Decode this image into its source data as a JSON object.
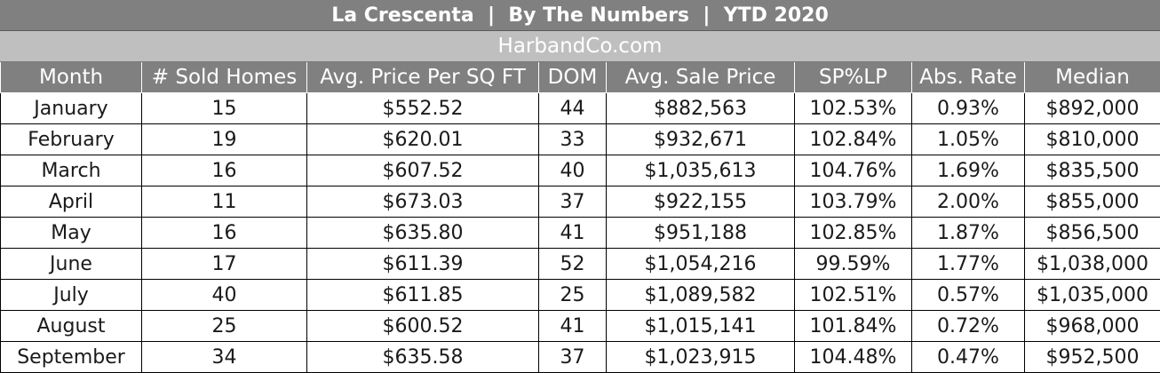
{
  "header": {
    "title": "La Crescenta  |  By The Numbers  |  YTD 2020",
    "site": "HarbandCo.com"
  },
  "chart_data": {
    "type": "table",
    "title": "La Crescenta  |  By The Numbers  |  YTD 2020",
    "columns": [
      "Month",
      "# Sold Homes",
      "Avg. Price Per SQ FT",
      "DOM",
      "Avg. Sale Price",
      "SP%LP",
      "Abs. Rate",
      "Median"
    ],
    "rows": [
      [
        "January",
        "15",
        "$552.52",
        "44",
        "$882,563",
        "102.53%",
        "0.93%",
        "$892,000"
      ],
      [
        "February",
        "19",
        "$620.01",
        "33",
        "$932,671",
        "102.84%",
        "1.05%",
        "$810,000"
      ],
      [
        "March",
        "16",
        "$607.52",
        "40",
        "$1,035,613",
        "104.76%",
        "1.69%",
        "$835,500"
      ],
      [
        "April",
        "11",
        "$673.03",
        "37",
        "$922,155",
        "103.79%",
        "2.00%",
        "$855,000"
      ],
      [
        "May",
        "16",
        "$635.80",
        "41",
        "$951,188",
        "102.85%",
        "1.87%",
        "$856,500"
      ],
      [
        "June",
        "17",
        "$611.39",
        "52",
        "$1,054,216",
        "99.59%",
        "1.77%",
        "$1,038,000"
      ],
      [
        "July",
        "40",
        "$611.85",
        "25",
        "$1,089,582",
        "102.51%",
        "0.57%",
        "$1,035,000"
      ],
      [
        "August",
        "25",
        "$600.52",
        "41",
        "$1,015,141",
        "101.84%",
        "0.72%",
        "$968,000"
      ],
      [
        "September",
        "34",
        "$635.58",
        "37",
        "$1,023,915",
        "104.48%",
        "0.47%",
        "$952,500"
      ]
    ]
  }
}
